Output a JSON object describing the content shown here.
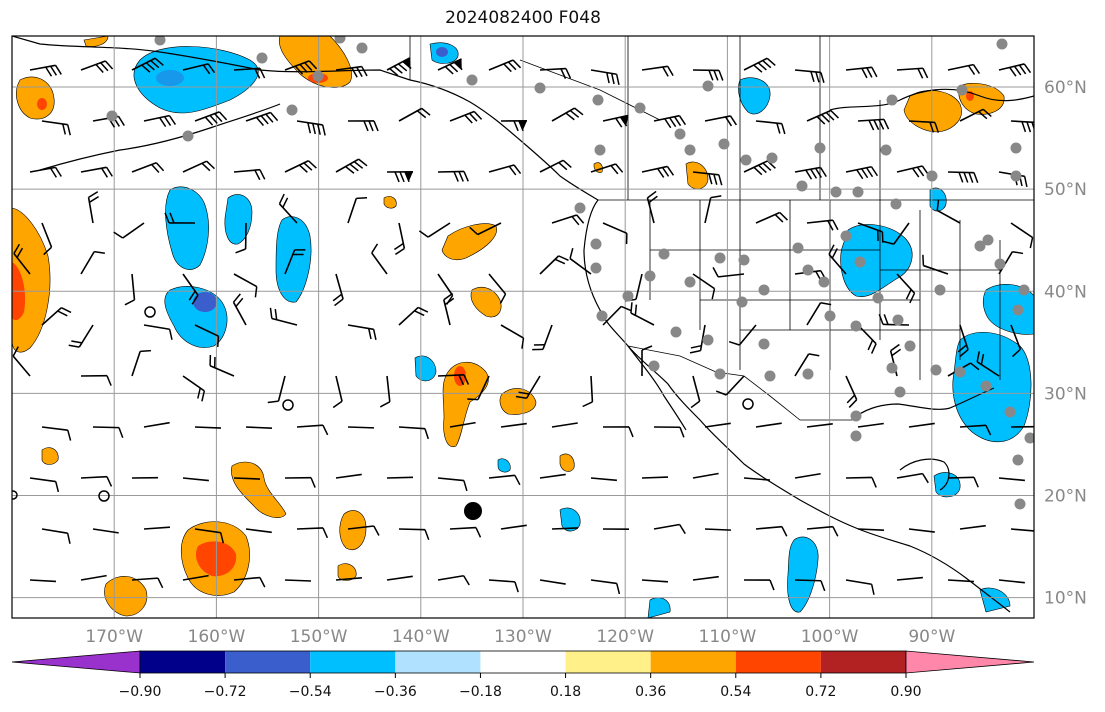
{
  "title": "2024082400 F048",
  "map": {
    "lon_range": [
      -180,
      -80
    ],
    "lat_range": [
      8,
      65
    ],
    "grid": true,
    "lon_labels": [
      {
        "lon": -170,
        "text": "170°W"
      },
      {
        "lon": -160,
        "text": "160°W"
      },
      {
        "lon": -150,
        "text": "150°W"
      },
      {
        "lon": -140,
        "text": "140°W"
      },
      {
        "lon": -130,
        "text": "130°W"
      },
      {
        "lon": -120,
        "text": "120°W"
      },
      {
        "lon": -110,
        "text": "110°W"
      },
      {
        "lon": -100,
        "text": "100°W"
      },
      {
        "lon": -90,
        "text": "90°W"
      }
    ],
    "lat_labels": [
      {
        "lat": 60,
        "text": "60°N"
      },
      {
        "lat": 50,
        "text": "50°N"
      },
      {
        "lat": 40,
        "text": "40°N"
      },
      {
        "lat": 30,
        "text": "30°N"
      },
      {
        "lat": 20,
        "text": "20°N"
      },
      {
        "lat": 10,
        "text": "10°N"
      }
    ]
  },
  "colorbar": {
    "colors": [
      "#9932cc",
      "#00008b",
      "#3a5fcd",
      "#00bfff",
      "#b0e2ff",
      "#ffffff",
      "#fff08a",
      "#ffa500",
      "#ff4500",
      "#b22222",
      "#ff88aa"
    ],
    "ticks": [
      "−0.90",
      "−0.72",
      "−0.54",
      "−0.36",
      "−0.18",
      "0.18",
      "0.36",
      "0.54",
      "0.72",
      "0.90"
    ]
  }
}
